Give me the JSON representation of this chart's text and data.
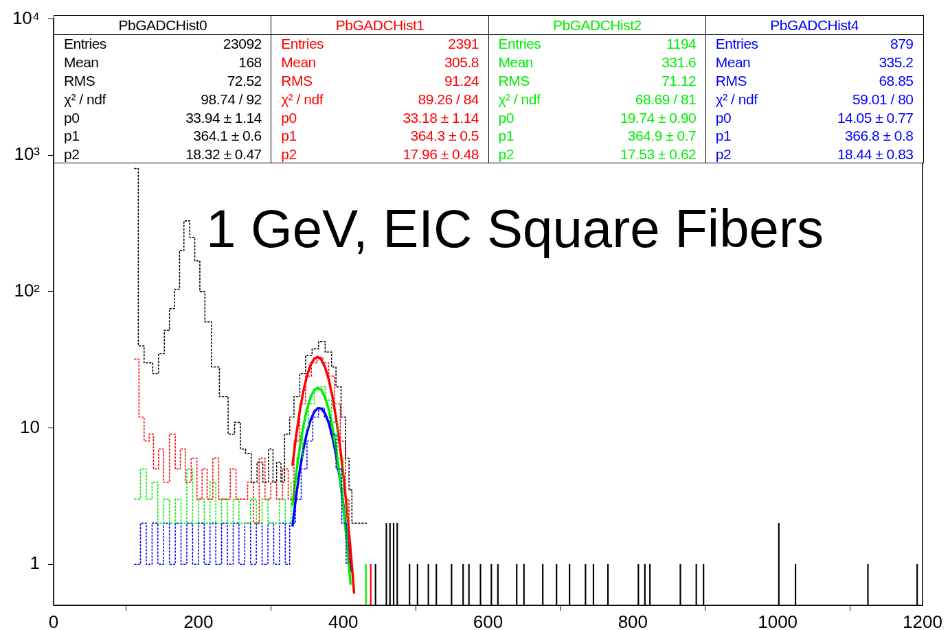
{
  "chart_data": {
    "type": "step",
    "title": "1 GeV, EIC Square Fibers",
    "log": "y",
    "marker": "none",
    "grid": false,
    "xlim": [
      0,
      1200
    ],
    "xticks": [
      0,
      200,
      400,
      600,
      800,
      1000,
      1200
    ],
    "ylim": [
      0.5,
      10000
    ],
    "yticks": [
      1,
      10,
      {
        "value": 100,
        "label": "10²"
      },
      {
        "value": 1000,
        "label": "10³"
      },
      {
        "value": 10000,
        "label": "10⁴"
      }
    ],
    "series": [
      {
        "name": "PbGADCHist0",
        "color": "#000000",
        "line_style": "dotted",
        "x": [
          112,
          117,
          125,
          137,
          145,
          153,
          160,
          167,
          174,
          180,
          188,
          195,
          202,
          209,
          218,
          229,
          241,
          250,
          258,
          265,
          273,
          281,
          289,
          297,
          303,
          308,
          314,
          319,
          326,
          332,
          340,
          348,
          357,
          366,
          375,
          384,
          390,
          397,
          403,
          408,
          412,
          432
        ],
        "values": [
          800,
          40,
          30,
          25,
          35,
          52,
          75,
          104,
          200,
          330,
          250,
          168,
          100,
          60,
          28,
          17,
          9,
          11,
          7,
          6.5,
          4,
          5.6,
          4,
          7,
          4,
          5.6,
          4,
          9,
          12,
          17,
          25,
          34,
          38,
          43,
          36,
          28,
          20,
          12,
          6,
          3.5,
          2,
          2
        ]
      },
      {
        "name": "PbGADCHist1",
        "color": "#ff0000",
        "line_style": "dotted",
        "x": [
          112,
          118,
          125,
          132,
          138,
          145,
          152,
          160,
          168,
          175,
          182,
          190,
          198,
          205,
          212,
          220,
          228,
          236,
          244,
          252,
          260,
          268,
          276,
          284,
          292,
          300,
          308,
          316,
          324,
          332,
          340,
          348,
          356,
          364,
          372,
          380,
          388,
          396,
          403,
          408
        ],
        "values": [
          32,
          12,
          8,
          9,
          5,
          7,
          4,
          9,
          5,
          7,
          4,
          6,
          3,
          5,
          3,
          6,
          3,
          3,
          5,
          3,
          3,
          4,
          2,
          6,
          3,
          4,
          3,
          5,
          3,
          8,
          15,
          24,
          30,
          33,
          30,
          24,
          15,
          8,
          3,
          1
        ]
      },
      {
        "name": "PbGADCHist2",
        "color": "#00ee00",
        "line_style": "dotted",
        "x": [
          112,
          120,
          128,
          136,
          144,
          152,
          160,
          168,
          176,
          184,
          192,
          200,
          208,
          216,
          224,
          232,
          240,
          248,
          256,
          264,
          272,
          280,
          288,
          296,
          304,
          312,
          320,
          328,
          336,
          344,
          352,
          360,
          368,
          376,
          384,
          392,
          400,
          406
        ],
        "values": [
          3,
          5,
          3,
          4,
          2,
          3,
          2,
          3,
          2,
          5,
          2,
          3,
          2,
          4,
          2,
          3,
          2,
          3,
          2,
          2,
          3,
          2,
          3,
          2,
          2,
          3,
          2,
          4,
          6,
          10,
          15,
          19,
          20,
          16,
          11,
          6,
          3,
          1
        ]
      },
      {
        "name": "PbGADCHist4",
        "color": "#0000ff",
        "line_style": "dotted",
        "x": [
          112,
          120,
          128,
          136,
          144,
          152,
          160,
          168,
          176,
          184,
          192,
          200,
          208,
          216,
          224,
          232,
          240,
          248,
          256,
          264,
          272,
          280,
          288,
          296,
          304,
          312,
          320,
          326,
          334,
          342,
          350,
          358,
          366,
          374,
          382,
          390,
          398,
          404
        ],
        "values": [
          1,
          2,
          1,
          2,
          1,
          2,
          1,
          2,
          1,
          2,
          1,
          2,
          1,
          2,
          1,
          2,
          1,
          2,
          1,
          2,
          1,
          2,
          1,
          2,
          1,
          2,
          1,
          2,
          3,
          5,
          8,
          12,
          14,
          12,
          9,
          5,
          2,
          1
        ]
      },
      {
        "color": "#000000",
        "type": "bar",
        "x": [
          446,
          461,
          466,
          471,
          476,
          493,
          504,
          519,
          530,
          551,
          567,
          575,
          591,
          606,
          615,
          641,
          651,
          677,
          696,
          714,
          736,
          747,
          767,
          809,
          818,
          825,
          867,
          889,
          899,
          1003,
          1026,
          1126,
          1194
        ],
        "values": [
          1,
          2,
          2,
          2,
          2,
          1,
          1,
          1,
          1,
          1,
          1,
          1,
          1,
          1,
          1,
          1,
          1,
          1,
          1,
          1,
          1,
          1,
          1,
          1,
          1,
          1,
          1,
          1,
          1,
          2,
          1,
          1,
          1
        ]
      },
      {
        "color": "#ff0000",
        "type": "bar",
        "x": [
          438
        ],
        "values": [
          1
        ]
      },
      {
        "color": "#00ee00",
        "type": "bar",
        "x": [
          430
        ],
        "values": [
          1
        ]
      },
      {
        "color": "#ff0000",
        "type": "line",
        "line_style": "solid",
        "x": [
          330,
          335,
          340,
          345,
          350,
          355,
          360,
          365,
          370,
          375,
          380,
          385,
          390,
          395,
          400,
          405,
          410,
          415
        ],
        "values": [
          5.36,
          8.77,
          13.29,
          18.63,
          24.17,
          29.02,
          32.24,
          33.17,
          31.55,
          27.78,
          22.64,
          17.08,
          11.92,
          7.7,
          4.6,
          2.55,
          1.3,
          0.62
        ]
      },
      {
        "color": "#00ee00",
        "type": "line",
        "line_style": "solid",
        "x": [
          330,
          335,
          340,
          345,
          350,
          355,
          360,
          365,
          370,
          375,
          380,
          385,
          390,
          395,
          400,
          405,
          410
        ],
        "values": [
          2.72,
          4.61,
          7.2,
          10.37,
          13.76,
          16.83,
          18.98,
          19.74,
          18.92,
          16.72,
          13.62,
          10.23,
          7.08,
          4.52,
          2.66,
          1.44,
          0.72
        ]
      },
      {
        "color": "#0000ff",
        "type": "line",
        "line_style": "solid",
        "x": [
          330,
          335,
          340,
          345,
          350,
          355,
          360,
          365,
          370,
          375,
          380,
          385,
          390,
          395,
          400,
          405,
          410
        ],
        "values": [
          1.92,
          3.18,
          4.89,
          6.98,
          9.28,
          11.45,
          13.13,
          13.98,
          13.84,
          12.73,
          10.88,
          8.63,
          6.37,
          4.37,
          2.78,
          1.64,
          0.9
        ]
      }
    ],
    "annotations": [
      "Entries",
      "23092",
      "Mean",
      "168",
      "RMS",
      "72.52",
      "χ² / ndf",
      "98.74 / 92",
      "p0",
      "33.94 ± 1.14",
      "p1",
      "364.1 ± 0.6",
      "p2",
      "18.32 ± 0.47",
      "Entries",
      "2391",
      "Mean",
      "305.8",
      "RMS",
      "91.24",
      "χ² / ndf",
      "89.26 / 84",
      "p0",
      "33.18 ± 1.14",
      "p1",
      "364.3 ± 0.5",
      "p2",
      "17.96 ± 0.48",
      "Entries",
      "1194",
      "Mean",
      "331.6",
      "RMS",
      "71.12",
      "χ² / ndf",
      "68.69 / 81",
      "p0",
      "19.74 ± 0.90",
      "p1",
      "364.9 ± 0.7",
      "p2",
      "17.53 ± 0.62",
      "Entries",
      "879",
      "Mean",
      "335.2",
      "RMS",
      "68.85",
      "χ² / ndf",
      "59.01 / 80",
      "p0",
      "14.05 ± 0.77",
      "p1",
      "366.8 ± 0.8",
      "p2",
      "18.44 ± 0.83"
    ]
  }
}
